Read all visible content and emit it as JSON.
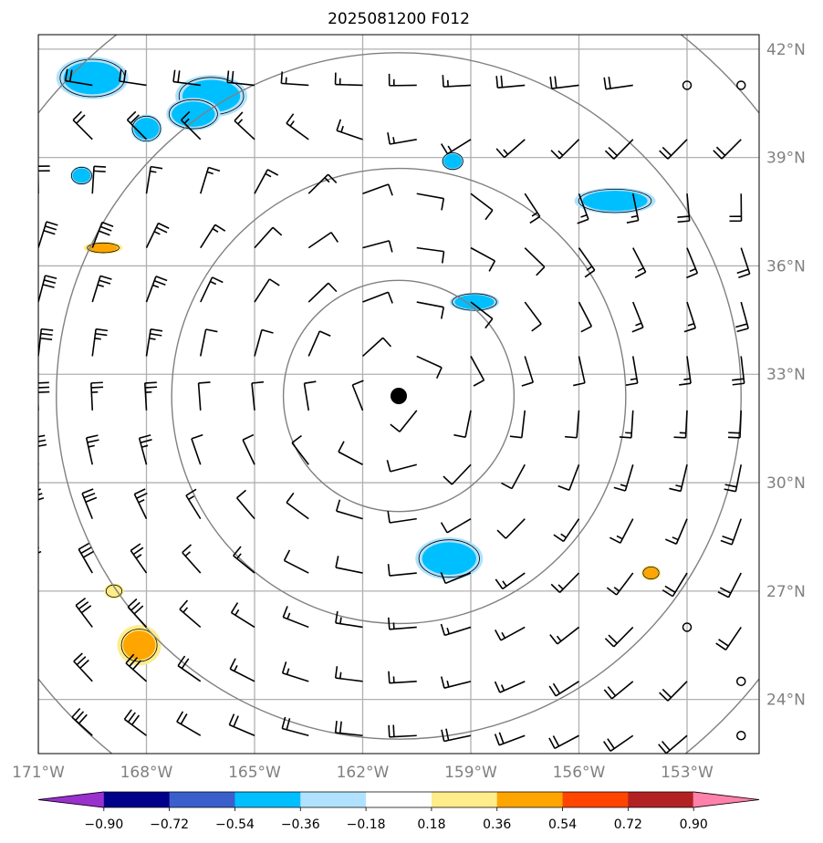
{
  "chart_data": {
    "type": "map-contour",
    "title": "2025081200 F012",
    "xlabel": "",
    "ylabel": "",
    "xlim": [
      -171,
      -150.6
    ],
    "ylim": [
      22.5,
      42.4
    ],
    "lon_ticks": [
      {
        "value": -171,
        "label": "171°W"
      },
      {
        "value": -168,
        "label": "168°W"
      },
      {
        "value": -165,
        "label": "165°W"
      },
      {
        "value": -162,
        "label": "162°W"
      },
      {
        "value": -159,
        "label": "159°W"
      },
      {
        "value": -156,
        "label": "156°W"
      },
      {
        "value": -153,
        "label": "153°W"
      }
    ],
    "lat_ticks": [
      {
        "value": 42,
        "label": "42°N"
      },
      {
        "value": 39,
        "label": "39°N"
      },
      {
        "value": 36,
        "label": "36°N"
      },
      {
        "value": 33,
        "label": "33°N"
      },
      {
        "value": 30,
        "label": "30°N"
      },
      {
        "value": 27,
        "label": "27°N"
      },
      {
        "value": 24,
        "label": "24°N"
      }
    ],
    "grid": true,
    "center": {
      "lon": -161.0,
      "lat": 32.4
    },
    "range_rings_deg": [
      3.2,
      6.3,
      9.5,
      12.7
    ],
    "colorbar": {
      "ticks": [
        "−0.90",
        "−0.72",
        "−0.54",
        "−0.36",
        "−0.18",
        "0.18",
        "0.36",
        "0.54",
        "0.72",
        "0.90"
      ],
      "colors": [
        "#9932cc",
        "#00008b",
        "#3a5fcd",
        "#00bfff",
        "#b0e2ff",
        "#ffffff",
        "#ffec8b",
        "#ffa500",
        "#ff4500",
        "#b22222",
        "#ff82ab"
      ],
      "extend": "both"
    },
    "negative_features": [
      {
        "lon": -169.5,
        "lat": 41.2,
        "rx": 0.8,
        "ry": 0.45,
        "level": -0.54
      },
      {
        "lon": -166.2,
        "lat": 40.7,
        "rx": 0.8,
        "ry": 0.45,
        "level": -0.54
      },
      {
        "lon": -166.7,
        "lat": 40.2,
        "rx": 0.6,
        "ry": 0.35,
        "level": -0.54
      },
      {
        "lon": -168.0,
        "lat": 39.8,
        "rx": 0.35,
        "ry": 0.3,
        "level": -0.54
      },
      {
        "lon": -169.8,
        "lat": 38.5,
        "rx": 0.25,
        "ry": 0.2,
        "level": -0.36
      },
      {
        "lon": -159.5,
        "lat": 38.9,
        "rx": 0.25,
        "ry": 0.2,
        "level": -0.36
      },
      {
        "lon": -155.0,
        "lat": 37.8,
        "rx": 0.9,
        "ry": 0.28,
        "level": -0.54
      },
      {
        "lon": -158.9,
        "lat": 35.0,
        "rx": 0.55,
        "ry": 0.2,
        "level": -0.54
      },
      {
        "lon": -159.6,
        "lat": 27.9,
        "rx": 0.75,
        "ry": 0.45,
        "level": -0.54
      }
    ],
    "positive_features": [
      {
        "lon": -169.2,
        "lat": 36.5,
        "rx": 0.4,
        "ry": 0.12,
        "level": 0.54
      },
      {
        "lon": -168.9,
        "lat": 27.0,
        "rx": 0.2,
        "ry": 0.15,
        "level": 0.36
      },
      {
        "lon": -168.2,
        "lat": 25.5,
        "rx": 0.45,
        "ry": 0.4,
        "level": 0.54
      },
      {
        "lon": -154.0,
        "lat": 27.5,
        "rx": 0.2,
        "ry": 0.15,
        "level": 0.54
      }
    ],
    "calm_points": [
      {
        "lon": -153.0,
        "lat": 41.0
      },
      {
        "lon": -151.5,
        "lat": 41.0
      },
      {
        "lon": -153.0,
        "lat": 26.0
      },
      {
        "lon": -151.5,
        "lat": 24.5
      },
      {
        "lon": -151.5,
        "lat": 23.0
      }
    ]
  }
}
